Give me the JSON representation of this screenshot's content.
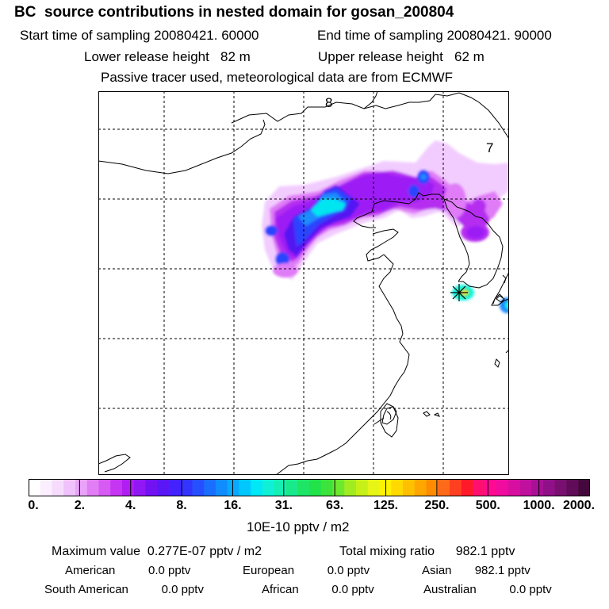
{
  "title": "BC  source contributions in nested domain for gosan_200804",
  "header": {
    "start_label": "Start time of sampling 20080421. 60000",
    "end_label": "End time of sampling 20080421. 90000",
    "lower_label": "Lower release height   82 m",
    "upper_label": "Upper release height   62 m",
    "tracer_label": "Passive tracer used, meteorological data are from ECMWF"
  },
  "map": {
    "zone_labels": [
      "8",
      "7"
    ],
    "receptor": "gosan",
    "plume_colors": {
      "faint": "#f2ccff",
      "light": "#e07cf7",
      "violet": "#b52ef0",
      "purple": "#9d1cf5",
      "blue": "#5219f2",
      "royal": "#2a44ff",
      "azure": "#1a8cff",
      "cyan": "#00e6f0",
      "aqua": "#18f7e0",
      "green": "#33e08a",
      "yellow": "#ffe400"
    }
  },
  "colorbar": {
    "colors": [
      "#ffffff",
      "#fbeefe",
      "#f6dbfd",
      "#f0c2fb",
      "#e9a3f8",
      "#e17ef6",
      "#d65af4",
      "#c535f2",
      "#b01ef3",
      "#9117f4",
      "#7212f3",
      "#5a17f5",
      "#4422ff",
      "#3335ff",
      "#2650ff",
      "#1a6eff",
      "#108cff",
      "#08aaff",
      "#00c8ff",
      "#00e8f5",
      "#10f0d6",
      "#14f0b4",
      "#18ea8c",
      "#1ee566",
      "#22e24a",
      "#3ce33c",
      "#6ee82e",
      "#a0ec20",
      "#c6f018",
      "#e6f516",
      "#fff200",
      "#ffd900",
      "#ffc000",
      "#ffa600",
      "#ff8c00",
      "#ff6a1a",
      "#ff4020",
      "#ff1a2a",
      "#ff1070",
      "#ff0a90",
      "#f00c9e",
      "#d70fa0",
      "#c0109e",
      "#a81096",
      "#901088",
      "#781070",
      "#600c58",
      "#45083c"
    ],
    "tick_labels": [
      "0.",
      "2.",
      "4.",
      "8.",
      "16.",
      "31.",
      "63.",
      "125.",
      "250.",
      "500.",
      "1000.",
      "2000."
    ],
    "units": "10E-10 pptv / m2"
  },
  "footer": {
    "max_value": "Maximum value  0.277E-07 pptv / m2",
    "total_mixing": "Total mixing ratio      982.1 pptv",
    "american": "American          0.0 pptv",
    "european": "European          0.0 pptv",
    "asian": "Asian       982.1 pptv",
    "south_american": "South American          0.0 pptv",
    "african": "African          0.0 pptv",
    "australian": "Australian          0.0 pptv"
  }
}
